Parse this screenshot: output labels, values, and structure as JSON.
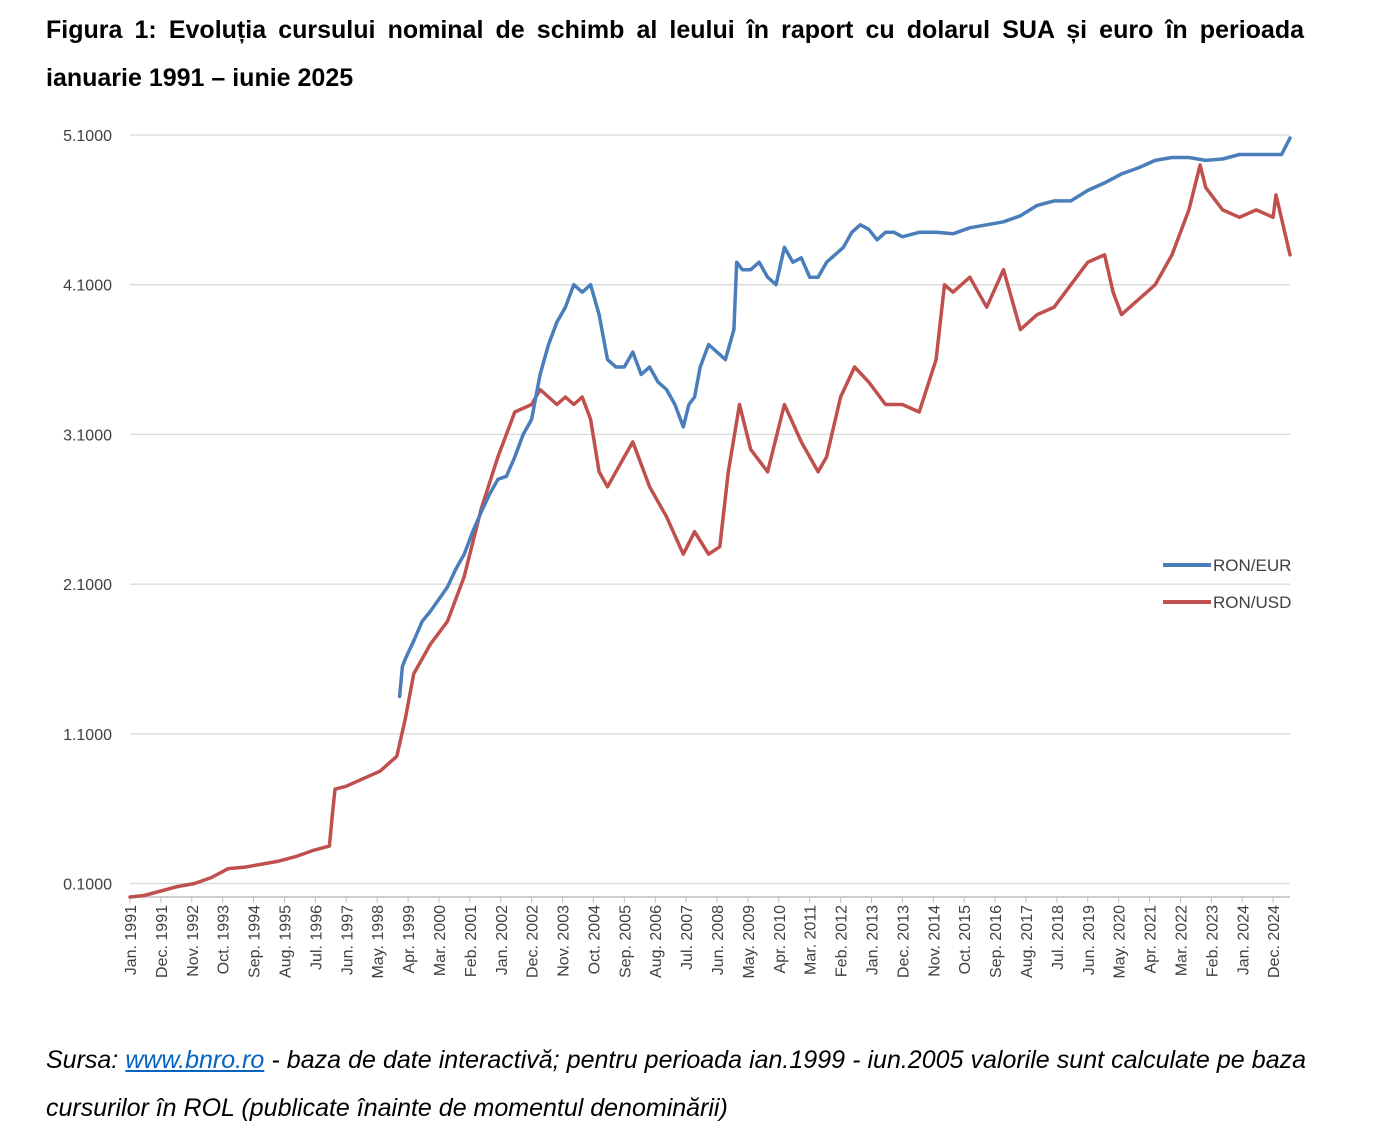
{
  "figure": {
    "title": "Figura 1: Evoluția cursului nominal de schimb al leului în raport cu dolarul SUA și euro în perioada ianuarie 1991 – iunie 2025",
    "source_prefix": "Sursa: ",
    "source_link": "www.bnro.ro",
    "source_text": " - baza de date interactivă; pentru perioada ian.1999 - iun.2005 valorile sunt calculate pe baza cursurilor în ROL (publicate înainte de momentul denominării)"
  },
  "chart_data": {
    "type": "line",
    "title": "",
    "xlabel": "",
    "ylabel": "",
    "ylim": [
      0.01,
      5.1
    ],
    "grid": true,
    "legend_position": "right",
    "y_ticks": [
      "0.1000",
      "1.1000",
      "2.1000",
      "3.1000",
      "4.1000",
      "5.1000"
    ],
    "x_tick_labels": [
      "Jan. 1991",
      "Dec. 1991",
      "Nov. 1992",
      "Oct. 1993",
      "Sep. 1994",
      "Aug. 1995",
      "Jul. 1996",
      "Jun. 1997",
      "May. 1998",
      "Apr. 1999",
      "Mar. 2000",
      "Feb. 2001",
      "Jan. 2002",
      "Dec. 2002",
      "Nov. 2003",
      "Oct. 2004",
      "Sep. 2005",
      "Aug. 2006",
      "Jul. 2007",
      "Jun. 2008",
      "May. 2009",
      "Apr. 2010",
      "Mar. 2011",
      "Feb. 2012",
      "Jan. 2013",
      "Dec. 2013",
      "Nov. 2014",
      "Oct. 2015",
      "Sep. 2016",
      "Aug. 2017",
      "Jul. 2018",
      "Jun. 2019",
      "May. 2020",
      "Apr. 2021",
      "Mar. 2022",
      "Feb. 2023",
      "Jan. 2024",
      "Dec. 2024"
    ],
    "series": [
      {
        "name": "RON/EUR",
        "color": "#4a7ebb",
        "x": [
          "1999-01",
          "1999-02",
          "1999-03",
          "1999-06",
          "1999-09",
          "1999-12",
          "2000-03",
          "2000-06",
          "2000-09",
          "2000-12",
          "2001-03",
          "2001-06",
          "2001-09",
          "2001-12",
          "2002-03",
          "2002-06",
          "2002-09",
          "2002-12",
          "2003-03",
          "2003-06",
          "2003-09",
          "2003-12",
          "2004-03",
          "2004-06",
          "2004-09",
          "2004-12",
          "2005-03",
          "2005-06",
          "2005-09",
          "2005-12",
          "2006-03",
          "2006-06",
          "2006-09",
          "2006-12",
          "2007-03",
          "2007-06",
          "2007-08",
          "2007-10",
          "2007-12",
          "2008-03",
          "2008-06",
          "2008-09",
          "2008-12",
          "2009-01",
          "2009-03",
          "2009-06",
          "2009-09",
          "2009-12",
          "2010-03",
          "2010-06",
          "2010-09",
          "2010-12",
          "2011-03",
          "2011-06",
          "2011-09",
          "2011-12",
          "2012-03",
          "2012-06",
          "2012-09",
          "2012-12",
          "2013-03",
          "2013-06",
          "2013-09",
          "2013-12",
          "2014-06",
          "2014-12",
          "2015-06",
          "2015-12",
          "2016-06",
          "2016-12",
          "2017-06",
          "2017-12",
          "2018-06",
          "2018-12",
          "2019-06",
          "2019-12",
          "2020-06",
          "2020-12",
          "2021-06",
          "2021-12",
          "2022-06",
          "2022-12",
          "2023-06",
          "2023-12",
          "2024-06",
          "2024-12",
          "2025-03",
          "2025-06"
        ],
        "values": [
          1.35,
          1.55,
          1.6,
          1.72,
          1.85,
          1.92,
          2.0,
          2.08,
          2.2,
          2.3,
          2.45,
          2.58,
          2.7,
          2.8,
          2.82,
          2.95,
          3.1,
          3.2,
          3.5,
          3.7,
          3.85,
          3.95,
          4.1,
          4.05,
          4.1,
          3.9,
          3.6,
          3.55,
          3.55,
          3.65,
          3.5,
          3.55,
          3.45,
          3.4,
          3.3,
          3.15,
          3.3,
          3.35,
          3.55,
          3.7,
          3.65,
          3.6,
          3.8,
          4.25,
          4.2,
          4.2,
          4.25,
          4.15,
          4.1,
          4.35,
          4.25,
          4.28,
          4.15,
          4.15,
          4.25,
          4.3,
          4.35,
          4.45,
          4.5,
          4.47,
          4.4,
          4.45,
          4.45,
          4.42,
          4.45,
          4.45,
          4.44,
          4.48,
          4.5,
          4.52,
          4.56,
          4.63,
          4.66,
          4.66,
          4.73,
          4.78,
          4.84,
          4.88,
          4.93,
          4.95,
          4.95,
          4.93,
          4.94,
          4.97,
          4.97,
          4.97,
          4.97,
          5.08
        ]
      },
      {
        "name": "RON/USD",
        "color": "#c0504d",
        "x": [
          "1991-01",
          "1991-06",
          "1991-12",
          "1992-06",
          "1992-12",
          "1993-06",
          "1993-12",
          "1994-06",
          "1994-12",
          "1995-06",
          "1995-12",
          "1996-06",
          "1996-12",
          "1997-01",
          "1997-02",
          "1997-06",
          "1997-12",
          "1998-06",
          "1998-12",
          "1999-03",
          "1999-06",
          "1999-09",
          "1999-12",
          "2000-06",
          "2000-12",
          "2001-06",
          "2001-12",
          "2002-06",
          "2002-12",
          "2003-03",
          "2003-06",
          "2003-09",
          "2003-12",
          "2004-03",
          "2004-06",
          "2004-09",
          "2004-12",
          "2005-03",
          "2005-06",
          "2005-09",
          "2005-12",
          "2006-06",
          "2006-12",
          "2007-06",
          "2007-10",
          "2008-03",
          "2008-07",
          "2008-10",
          "2009-02",
          "2009-06",
          "2009-12",
          "2010-06",
          "2010-12",
          "2011-06",
          "2011-09",
          "2012-02",
          "2012-07",
          "2012-12",
          "2013-06",
          "2013-12",
          "2014-06",
          "2014-12",
          "2015-03",
          "2015-06",
          "2015-12",
          "2016-06",
          "2016-12",
          "2017-06",
          "2017-12",
          "2018-06",
          "2018-12",
          "2019-06",
          "2019-12",
          "2020-03",
          "2020-06",
          "2020-12",
          "2021-06",
          "2021-12",
          "2022-06",
          "2022-10",
          "2022-12",
          "2023-06",
          "2023-12",
          "2024-06",
          "2024-12",
          "2025-01",
          "2025-06"
        ],
        "values": [
          0.01,
          0.02,
          0.05,
          0.08,
          0.1,
          0.14,
          0.2,
          0.21,
          0.23,
          0.25,
          0.28,
          0.32,
          0.35,
          0.55,
          0.73,
          0.75,
          0.8,
          0.85,
          0.95,
          1.2,
          1.5,
          1.6,
          1.7,
          1.85,
          2.15,
          2.6,
          2.95,
          3.25,
          3.3,
          3.4,
          3.35,
          3.3,
          3.35,
          3.3,
          3.35,
          3.2,
          2.85,
          2.75,
          2.85,
          2.95,
          3.05,
          2.75,
          2.55,
          2.3,
          2.45,
          2.3,
          2.35,
          2.85,
          3.3,
          3.0,
          2.85,
          3.3,
          3.05,
          2.85,
          2.95,
          3.35,
          3.55,
          3.45,
          3.3,
          3.3,
          3.25,
          3.6,
          4.1,
          4.05,
          4.15,
          3.95,
          4.2,
          3.8,
          3.9,
          3.95,
          4.1,
          4.25,
          4.3,
          4.05,
          3.9,
          4.0,
          4.1,
          4.3,
          4.6,
          4.9,
          4.75,
          4.6,
          4.55,
          4.6,
          4.55,
          4.7,
          4.3
        ]
      }
    ]
  }
}
